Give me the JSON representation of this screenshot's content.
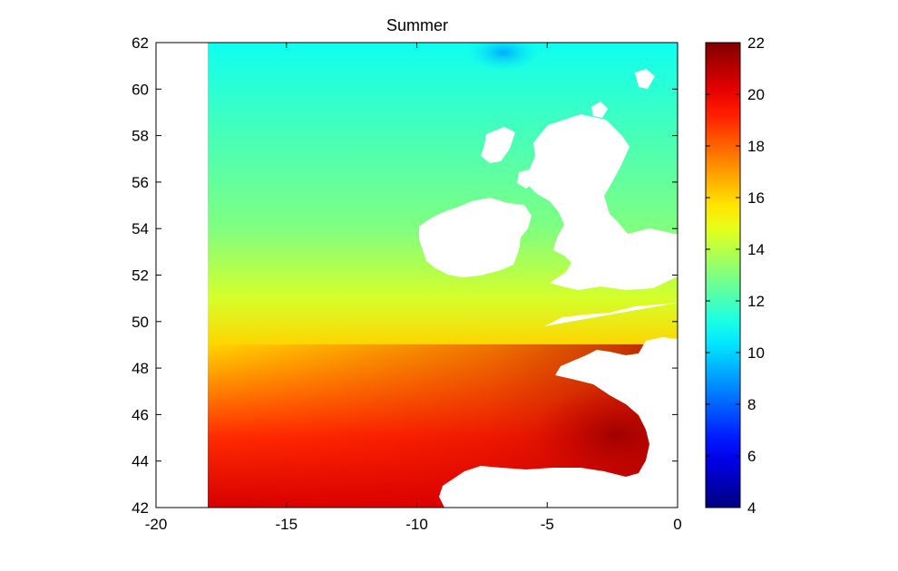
{
  "chart_data": {
    "type": "heatmap",
    "title": "Summer",
    "xlabel": "",
    "ylabel": "",
    "xlim": [
      -20,
      0
    ],
    "ylim": [
      42,
      62
    ],
    "x_ticks": [
      -20,
      -15,
      -10,
      -5,
      0
    ],
    "y_ticks": [
      42,
      44,
      46,
      48,
      50,
      52,
      54,
      56,
      58,
      60,
      62
    ],
    "data_extent": {
      "lon": [
        -18,
        0
      ],
      "lat": [
        42,
        62
      ]
    },
    "colorbar": {
      "colormap": "jet",
      "range": [
        4,
        22
      ],
      "ticks": [
        4,
        6,
        8,
        10,
        12,
        14,
        16,
        18,
        20,
        22
      ]
    },
    "gradient_samples": [
      {
        "lat": 62,
        "value": 11
      },
      {
        "lat": 58,
        "value": 12
      },
      {
        "lat": 54,
        "value": 13
      },
      {
        "lat": 51,
        "value": 14.5
      },
      {
        "lat": 49,
        "value": 16
      },
      {
        "lat": 47,
        "value": 17.5
      },
      {
        "lat": 45,
        "value": 19
      },
      {
        "lat": 42,
        "value": 20.5
      }
    ],
    "grid": false,
    "colors": {
      "land": "#ffffff",
      "axis": "#000000"
    }
  }
}
